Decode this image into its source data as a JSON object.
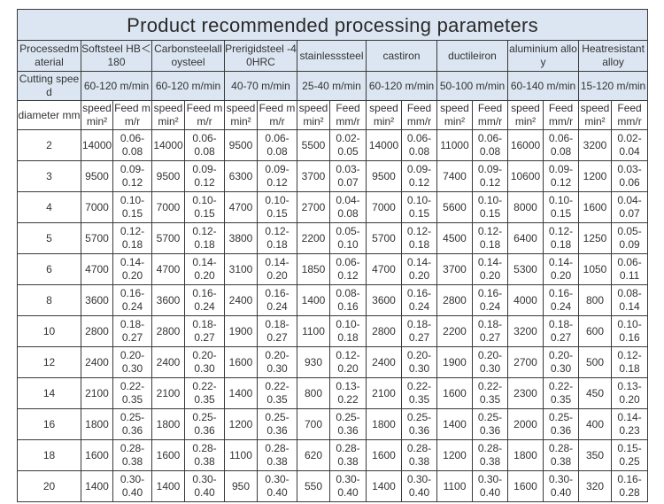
{
  "title": "Product recommended processing parameters",
  "header": {
    "material_label": "Processedmaterial",
    "speed_label": "Cutting speed",
    "diameter_label": "diameter mm",
    "speed_col": "speed min²",
    "feed_col": "Feed mm/r"
  },
  "materials": [
    {
      "name": "Softsteel HB＜180",
      "speed": "60-120 m/min"
    },
    {
      "name": "Carbonsteelalloysteel",
      "speed": "60-120 m/min"
    },
    {
      "name": "Prerigidsteel -40HRC",
      "speed": "40-70 m/min"
    },
    {
      "name": "stainlesssteel",
      "speed": "25-40 m/min"
    },
    {
      "name": "castiron",
      "speed": "60-120 m/min"
    },
    {
      "name": "ductileiron",
      "speed": "50-100 m/min"
    },
    {
      "name": "aluminium alloy",
      "speed": "60-140 m/min"
    },
    {
      "name": "Heatresistant alloy",
      "speed": "15-120 m/min"
    }
  ],
  "rows": [
    {
      "d": "2",
      "cells": [
        [
          "14000",
          "0.06-0.08"
        ],
        [
          "14000",
          "0.06-0.08"
        ],
        [
          "9500",
          "0.06-0.08"
        ],
        [
          "5500",
          "0.02-0.05"
        ],
        [
          "14000",
          "0.06-0.08"
        ],
        [
          "11000",
          "0.06-0.08"
        ],
        [
          "16000",
          "0.06-0.08"
        ],
        [
          "3200",
          "0.02-0.04"
        ]
      ]
    },
    {
      "d": "3",
      "cells": [
        [
          "9500",
          "0.09-0.12"
        ],
        [
          "9500",
          "0.09-0.12"
        ],
        [
          "6300",
          "0.09-0.12"
        ],
        [
          "3700",
          "0.03-0.07"
        ],
        [
          "9500",
          "0.09-0.12"
        ],
        [
          "7400",
          "0.09-0.12"
        ],
        [
          "10600",
          "0.09-0.12"
        ],
        [
          "1200",
          "0.03-0.06"
        ]
      ]
    },
    {
      "d": "4",
      "cells": [
        [
          "7000",
          "0.10-0.15"
        ],
        [
          "7000",
          "0.10-0.15"
        ],
        [
          "4700",
          "0.10-0.15"
        ],
        [
          "2700",
          "0.04-0.08"
        ],
        [
          "7000",
          "0.10-0.15"
        ],
        [
          "5600",
          "0.10-0.15"
        ],
        [
          "8000",
          "0.10-0.15"
        ],
        [
          "1600",
          "0.04-0.07"
        ]
      ]
    },
    {
      "d": "5",
      "cells": [
        [
          "5700",
          "0.12-0.18"
        ],
        [
          "5700",
          "0.12-0.18"
        ],
        [
          "3800",
          "0.12-0.18"
        ],
        [
          "2200",
          "0.05-0.10"
        ],
        [
          "5700",
          "0.12-0.18"
        ],
        [
          "4500",
          "0.12-0.18"
        ],
        [
          "6400",
          "0.12-0.18"
        ],
        [
          "1250",
          "0.05-0.09"
        ]
      ]
    },
    {
      "d": "6",
      "cells": [
        [
          "4700",
          "0.14-0.20"
        ],
        [
          "4700",
          "0.14-0.20"
        ],
        [
          "3100",
          "0.14-0.20"
        ],
        [
          "1850",
          "0.06-0.12"
        ],
        [
          "4700",
          "0.14-0.20"
        ],
        [
          "3700",
          "0.14-0.20"
        ],
        [
          "5300",
          "0.14-0.20"
        ],
        [
          "1050",
          "0.06-0.11"
        ]
      ]
    },
    {
      "d": "8",
      "cells": [
        [
          "3600",
          "0.16-0.24"
        ],
        [
          "3600",
          "0.16-0.24"
        ],
        [
          "2400",
          "0.16-0.24"
        ],
        [
          "1400",
          "0.08-0.16"
        ],
        [
          "3600",
          "0.16-0.24"
        ],
        [
          "2800",
          "0.16-0.24"
        ],
        [
          "4000",
          "0.16-0.24"
        ],
        [
          "800",
          "0.08-0.14"
        ]
      ]
    },
    {
      "d": "10",
      "cells": [
        [
          "2800",
          "0.18-0.27"
        ],
        [
          "2800",
          "0.18-0.27"
        ],
        [
          "1900",
          "0.18-0.27"
        ],
        [
          "1100",
          "0.10-0.18"
        ],
        [
          "2800",
          "0.18-0.27"
        ],
        [
          "2200",
          "0.18-0.27"
        ],
        [
          "3200",
          "0.18-0.27"
        ],
        [
          "600",
          "0.10-0.16"
        ]
      ]
    },
    {
      "d": "12",
      "cells": [
        [
          "2400",
          "0.20-0.30"
        ],
        [
          "2400",
          "0.20-0.30"
        ],
        [
          "1600",
          "0.20-0.30"
        ],
        [
          "930",
          "0.12-0.20"
        ],
        [
          "2400",
          "0.20-0.30"
        ],
        [
          "1900",
          "0.20-0.30"
        ],
        [
          "2700",
          "0.20-0.30"
        ],
        [
          "500",
          "0.12-0.18"
        ]
      ]
    },
    {
      "d": "14",
      "cells": [
        [
          "2100",
          "0.22-0.35"
        ],
        [
          "2100",
          "0.22-0.35"
        ],
        [
          "1400",
          "0.22-0.35"
        ],
        [
          "800",
          "0.13-0.22"
        ],
        [
          "2100",
          "0.22-0.35"
        ],
        [
          "1600",
          "0.22-0.35"
        ],
        [
          "2300",
          "0.22-0.35"
        ],
        [
          "450",
          "0.13-0.20"
        ]
      ]
    },
    {
      "d": "16",
      "cells": [
        [
          "1800",
          "0.25-0.36"
        ],
        [
          "1800",
          "0.25-0.36"
        ],
        [
          "1200",
          "0.25-0.36"
        ],
        [
          "700",
          "0.25-0.36"
        ],
        [
          "1800",
          "0.25-0.36"
        ],
        [
          "1400",
          "0.25-0.36"
        ],
        [
          "2000",
          "0.25-0.36"
        ],
        [
          "400",
          "0.14-0.23"
        ]
      ]
    },
    {
      "d": "18",
      "cells": [
        [
          "1600",
          "0.28-0.38"
        ],
        [
          "1600",
          "0.28-0.38"
        ],
        [
          "1100",
          "0.28-0.38"
        ],
        [
          "620",
          "0.28-0.38"
        ],
        [
          "1600",
          "0.28-0.38"
        ],
        [
          "1200",
          "0.28-0.38"
        ],
        [
          "1800",
          "0.28-0.38"
        ],
        [
          "350",
          "0.15-0.25"
        ]
      ]
    },
    {
      "d": "20",
      "cells": [
        [
          "1400",
          "0.30-0.40"
        ],
        [
          "1400",
          "0.30-0.40"
        ],
        [
          "950",
          "0.30-0.40"
        ],
        [
          "550",
          "0.30-0.40"
        ],
        [
          "1400",
          "0.30-0.40"
        ],
        [
          "1100",
          "0.30-0.40"
        ],
        [
          "1600",
          "0.30-0.40"
        ],
        [
          "320",
          "0.16-0.28"
        ]
      ]
    }
  ]
}
